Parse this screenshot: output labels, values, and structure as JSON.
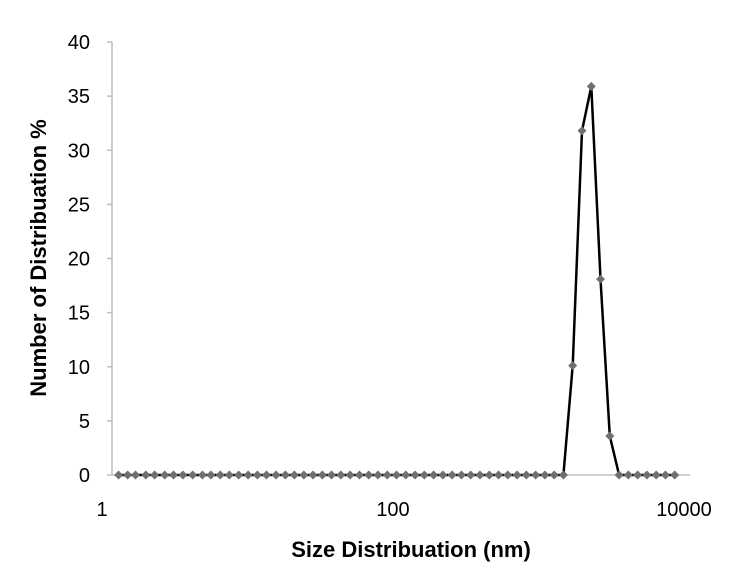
{
  "chart_data": {
    "type": "scatter",
    "title": "",
    "xlabel": "Size Distribuation (nm)",
    "ylabel": "Number of Distribuation %",
    "xscale": "log",
    "xlim": [
      1,
      10000
    ],
    "ylim": [
      0,
      40
    ],
    "xticks": [
      1,
      100,
      10000
    ],
    "xtick_labels": [
      "1",
      "100",
      "10000"
    ],
    "yticks": [
      0,
      5,
      10,
      15,
      20,
      25,
      30,
      35,
      40
    ],
    "ytick_labels": [
      "0",
      "5",
      "10",
      "15",
      "20",
      "25",
      "30",
      "35",
      "40"
    ],
    "grid": false,
    "legend": "none",
    "series": [
      {
        "line_color": "#000000",
        "marker": "diamond",
        "marker_color": "#707070",
        "x": [
          1.3,
          1.5,
          1.7,
          2.0,
          2.3,
          2.7,
          3.1,
          3.6,
          4.2,
          4.9,
          5.6,
          6.5,
          7.5,
          8.7,
          10.1,
          11.7,
          13.5,
          15.7,
          18.2,
          21.0,
          24.4,
          28.2,
          32.7,
          37.8,
          43.8,
          50.7,
          58.8,
          68.1,
          78.8,
          91.3,
          105.7,
          122.4,
          141.8,
          164.2,
          190.1,
          220.2,
          255.0,
          295.3,
          342.0,
          396.1,
          458.7,
          531.2,
          615.1,
          712.4,
          825.0,
          955.4,
          1106.0,
          1281.0,
          1484.0,
          1718.0,
          1990.0,
          2305.0,
          2669.0,
          3091.0,
          3580.0,
          4145.0,
          4801.0,
          5560.0,
          6439.0,
          7456.0,
          8635.0
        ],
        "y": [
          0,
          0,
          0,
          0,
          0,
          0,
          0,
          0,
          0,
          0,
          0,
          0,
          0,
          0,
          0,
          0,
          0,
          0,
          0,
          0,
          0,
          0,
          0,
          0,
          0,
          0,
          0,
          0,
          0,
          0,
          0,
          0,
          0,
          0,
          0,
          0,
          0,
          0,
          0,
          0,
          0,
          0,
          0,
          0,
          0,
          0,
          0,
          0,
          0,
          10.1,
          31.8,
          35.9,
          18.1,
          3.6,
          0,
          0,
          0,
          0,
          0,
          0,
          0
        ]
      }
    ]
  }
}
